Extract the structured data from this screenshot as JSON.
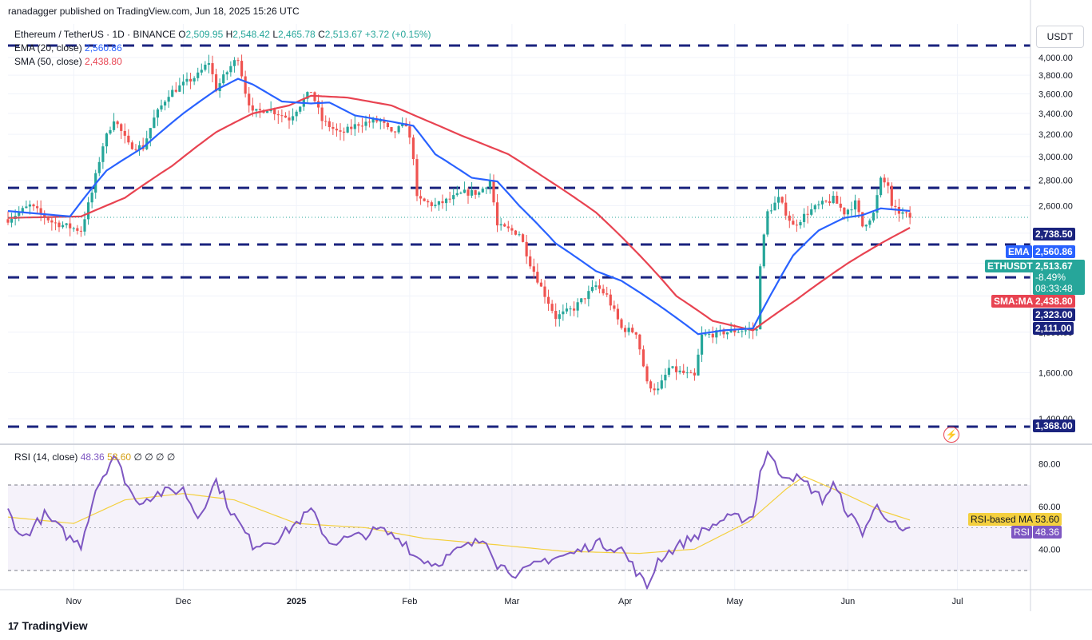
{
  "header": {
    "publisher": "ranadagger published on TradingView.com, Jun 18, 2025 15:26 UTC"
  },
  "legend": {
    "symbol": "Ethereum / TetherUS · 1D · BINANCE",
    "open_label": "O",
    "open": "2,509.95",
    "high_label": "H",
    "high": "2,548.42",
    "low_label": "L",
    "low": "2,465.78",
    "close_label": "C",
    "close": "2,513.67",
    "change": "+3.72 (+0.15%)",
    "ema_label": "EMA (20, close)",
    "ema_value": "2,560.86",
    "sma_label": "SMA (50, close)",
    "sma_value": "2,438.80"
  },
  "rsi_legend": {
    "label": "RSI (14, close)",
    "rsi": "48.36",
    "ma": "53.60",
    "extras": "∅ ∅ ∅ ∅"
  },
  "currency": "USDT",
  "brand": "TradingView",
  "colors": {
    "up": "#26a69a",
    "down": "#ef5350",
    "ema": "#2962ff",
    "sma": "#e84351",
    "rsi": "#7e57c2",
    "rsi_ma": "#f4d03f",
    "level": "#1a237e",
    "axis_text": "#131722"
  },
  "tags": {
    "ema": {
      "name": "EMA",
      "value": "2,560.86"
    },
    "price": {
      "name": "ETHUSDT",
      "value": "2,513.67",
      "pct": "-8.49%",
      "countdown": "08:33:48"
    },
    "sma": {
      "name": "SMA:MA",
      "value": "2,438.80"
    },
    "level_2738": "2,738.50",
    "level_2323": "2,323.00",
    "level_2111": "2,111.00",
    "level_1368": "1,368.00",
    "rsi_ma": {
      "name": "RSI-based MA",
      "value": "53.60"
    },
    "rsi": {
      "name": "RSI",
      "value": "48.36"
    }
  },
  "chart_data": [
    {
      "type": "candlestick",
      "title": "Ethereum / TetherUS · 1D · BINANCE",
      "y_ticks": [
        "1,400.00",
        "1,600.00",
        "1,800.00",
        "2,000.00",
        "2,200.00",
        "2,400.00",
        "2,600.00",
        "2,800.00",
        "3,000.00",
        "3,200.00",
        "3,400.00",
        "3,600.00",
        "3,800.00",
        "4,000.00"
      ],
      "x_ticks": [
        "Nov",
        "Dec",
        "2025",
        "Feb",
        "Mar",
        "Apr",
        "May",
        "Jun",
        "Jul"
      ],
      "ylim": [
        1368,
        4060
      ],
      "horizontal_levels": [
        4095,
        2738.5,
        2323,
        2111,
        1368
      ],
      "price_anchors": [
        [
          "2024-10-14",
          2500
        ],
        [
          "2024-10-20",
          2600
        ],
        [
          "2024-10-26",
          2480
        ],
        [
          "2024-11-03",
          2420
        ],
        [
          "2024-11-06",
          2700
        ],
        [
          "2024-11-09",
          3100
        ],
        [
          "2024-11-12",
          3350
        ],
        [
          "2024-11-16",
          3100
        ],
        [
          "2024-11-20",
          3080
        ],
        [
          "2024-11-23",
          3350
        ],
        [
          "2024-11-27",
          3600
        ],
        [
          "2024-12-01",
          3700
        ],
        [
          "2024-12-05",
          3800
        ],
        [
          "2024-12-08",
          3950
        ],
        [
          "2024-12-10",
          3650
        ],
        [
          "2024-12-14",
          3900
        ],
        [
          "2024-12-16",
          4000
        ],
        [
          "2024-12-18",
          3620
        ],
        [
          "2024-12-20",
          3400
        ],
        [
          "2024-12-24",
          3450
        ],
        [
          "2024-12-30",
          3350
        ],
        [
          "2025-01-05",
          3630
        ],
        [
          "2025-01-08",
          3330
        ],
        [
          "2025-01-13",
          3200
        ],
        [
          "2025-01-18",
          3300
        ],
        [
          "2025-01-24",
          3330
        ],
        [
          "2025-01-27",
          3200
        ],
        [
          "2025-01-31",
          3300
        ],
        [
          "2025-02-02",
          3000
        ],
        [
          "2025-02-03",
          2650
        ],
        [
          "2025-02-08",
          2600
        ],
        [
          "2025-02-16",
          2700
        ],
        [
          "2025-02-20",
          2700
        ],
        [
          "2025-02-23",
          2800
        ],
        [
          "2025-02-25",
          2450
        ],
        [
          "2025-03-03",
          2400
        ],
        [
          "2025-03-06",
          2200
        ],
        [
          "2025-03-09",
          2050
        ],
        [
          "2025-03-13",
          1880
        ],
        [
          "2025-03-18",
          1930
        ],
        [
          "2025-03-24",
          2060
        ],
        [
          "2025-03-27",
          2000
        ],
        [
          "2025-03-31",
          1820
        ],
        [
          "2025-04-04",
          1800
        ],
        [
          "2025-04-07",
          1550
        ],
        [
          "2025-04-10",
          1520
        ],
        [
          "2025-04-13",
          1620
        ],
        [
          "2025-04-20",
          1580
        ],
        [
          "2025-04-22",
          1780
        ],
        [
          "2025-04-28",
          1800
        ],
        [
          "2025-05-03",
          1810
        ],
        [
          "2025-05-07",
          1810
        ],
        [
          "2025-05-08",
          2200
        ],
        [
          "2025-05-10",
          2550
        ],
        [
          "2025-05-13",
          2650
        ],
        [
          "2025-05-17",
          2450
        ],
        [
          "2025-05-21",
          2550
        ],
        [
          "2025-05-24",
          2600
        ],
        [
          "2025-05-28",
          2650
        ],
        [
          "2025-05-31",
          2550
        ],
        [
          "2025-06-03",
          2620
        ],
        [
          "2025-06-05",
          2450
        ],
        [
          "2025-06-08",
          2540
        ],
        [
          "2025-06-10",
          2800
        ],
        [
          "2025-06-12",
          2760
        ],
        [
          "2025-06-13",
          2580
        ],
        [
          "2025-06-16",
          2540
        ],
        [
          "2025-06-18",
          2513.67
        ]
      ],
      "ema_20": [
        [
          "2024-10-14",
          2560
        ],
        [
          "2024-10-31",
          2520
        ],
        [
          "2024-11-10",
          2880
        ],
        [
          "2024-11-20",
          3080
        ],
        [
          "2024-12-01",
          3400
        ],
        [
          "2024-12-10",
          3640
        ],
        [
          "2024-12-16",
          3760
        ],
        [
          "2024-12-20",
          3700
        ],
        [
          "2024-12-28",
          3520
        ],
        [
          "2025-01-05",
          3500
        ],
        [
          "2025-01-10",
          3510
        ],
        [
          "2025-01-17",
          3380
        ],
        [
          "2025-01-27",
          3320
        ],
        [
          "2025-02-02",
          3280
        ],
        [
          "2025-02-08",
          3020
        ],
        [
          "2025-02-18",
          2820
        ],
        [
          "2025-02-25",
          2790
        ],
        [
          "2025-03-03",
          2600
        ],
        [
          "2025-03-13",
          2330
        ],
        [
          "2025-03-24",
          2150
        ],
        [
          "2025-03-31",
          2090
        ],
        [
          "2025-04-10",
          1950
        ],
        [
          "2025-04-21",
          1790
        ],
        [
          "2025-04-28",
          1810
        ],
        [
          "2025-05-06",
          1820
        ],
        [
          "2025-05-12",
          2050
        ],
        [
          "2025-05-17",
          2250
        ],
        [
          "2025-05-24",
          2420
        ],
        [
          "2025-05-31",
          2510
        ],
        [
          "2025-06-05",
          2530
        ],
        [
          "2025-06-10",
          2580
        ],
        [
          "2025-06-18",
          2560.86
        ]
      ],
      "sma_50": [
        [
          "2024-10-14",
          2510
        ],
        [
          "2024-11-03",
          2520
        ],
        [
          "2024-11-15",
          2660
        ],
        [
          "2024-11-28",
          2920
        ],
        [
          "2024-12-10",
          3220
        ],
        [
          "2024-12-20",
          3400
        ],
        [
          "2024-12-30",
          3480
        ],
        [
          "2025-01-05",
          3580
        ],
        [
          "2025-01-15",
          3560
        ],
        [
          "2025-01-27",
          3480
        ],
        [
          "2025-02-03",
          3370
        ],
        [
          "2025-02-15",
          3190
        ],
        [
          "2025-02-28",
          3020
        ],
        [
          "2025-03-10",
          2820
        ],
        [
          "2025-03-24",
          2550
        ],
        [
          "2025-04-05",
          2250
        ],
        [
          "2025-04-15",
          2000
        ],
        [
          "2025-04-25",
          1860
        ],
        [
          "2025-05-06",
          1810
        ],
        [
          "2025-05-18",
          1980
        ],
        [
          "2025-06-01",
          2200
        ],
        [
          "2025-06-10",
          2330
        ],
        [
          "2025-06-18",
          2438.8
        ]
      ]
    },
    {
      "type": "line",
      "title": "RSI (14, close)",
      "y_ticks": [
        "40.00",
        "60.00",
        "80.00"
      ],
      "ylim": [
        20,
        90
      ],
      "bands": [
        30,
        70
      ],
      "rsi_anchors": [
        [
          "2024-10-14",
          58
        ],
        [
          "2024-10-18",
          45
        ],
        [
          "2024-10-24",
          56
        ],
        [
          "2024-10-31",
          45
        ],
        [
          "2024-11-03",
          42
        ],
        [
          "2024-11-07",
          68
        ],
        [
          "2024-11-12",
          84
        ],
        [
          "2024-11-18",
          62
        ],
        [
          "2024-11-24",
          66
        ],
        [
          "2024-12-01",
          68
        ],
        [
          "2024-12-05",
          55
        ],
        [
          "2024-12-10",
          72
        ],
        [
          "2024-12-14",
          58
        ],
        [
          "2024-12-20",
          42
        ],
        [
          "2024-12-27",
          45
        ],
        [
          "2025-01-05",
          58
        ],
        [
          "2025-01-10",
          43
        ],
        [
          "2025-01-18",
          46
        ],
        [
          "2025-01-24",
          49
        ],
        [
          "2025-01-31",
          43
        ],
        [
          "2025-02-02",
          37
        ],
        [
          "2025-02-08",
          33
        ],
        [
          "2025-02-15",
          40
        ],
        [
          "2025-02-22",
          45
        ],
        [
          "2025-02-25",
          33
        ],
        [
          "2025-03-03",
          28
        ],
        [
          "2025-03-10",
          35
        ],
        [
          "2025-03-18",
          38
        ],
        [
          "2025-03-24",
          43
        ],
        [
          "2025-03-31",
          40
        ],
        [
          "2025-04-07",
          22
        ],
        [
          "2025-04-10",
          35
        ],
        [
          "2025-04-15",
          41
        ],
        [
          "2025-04-22",
          48
        ],
        [
          "2025-04-28",
          54
        ],
        [
          "2025-05-06",
          55
        ],
        [
          "2025-05-08",
          76
        ],
        [
          "2025-05-10",
          86
        ],
        [
          "2025-05-13",
          76
        ],
        [
          "2025-05-17",
          74
        ],
        [
          "2025-05-21",
          70
        ],
        [
          "2025-05-25",
          63
        ],
        [
          "2025-05-28",
          70
        ],
        [
          "2025-06-01",
          57
        ],
        [
          "2025-06-05",
          48
        ],
        [
          "2025-06-09",
          60
        ],
        [
          "2025-06-12",
          55
        ],
        [
          "2025-06-16",
          47
        ],
        [
          "2025-06-18",
          48.36
        ]
      ],
      "rsi_ma_anchors": [
        [
          "2024-10-14",
          55
        ],
        [
          "2024-11-01",
          52
        ],
        [
          "2024-11-15",
          63
        ],
        [
          "2024-12-01",
          66
        ],
        [
          "2024-12-15",
          63
        ],
        [
          "2025-01-01",
          52
        ],
        [
          "2025-01-20",
          50
        ],
        [
          "2025-02-05",
          45
        ],
        [
          "2025-02-25",
          42
        ],
        [
          "2025-03-15",
          39
        ],
        [
          "2025-04-05",
          38
        ],
        [
          "2025-04-20",
          40
        ],
        [
          "2025-05-05",
          53
        ],
        [
          "2025-05-15",
          68
        ],
        [
          "2025-05-20",
          74
        ],
        [
          "2025-05-31",
          66
        ],
        [
          "2025-06-10",
          58
        ],
        [
          "2025-06-18",
          53.6
        ]
      ]
    }
  ]
}
